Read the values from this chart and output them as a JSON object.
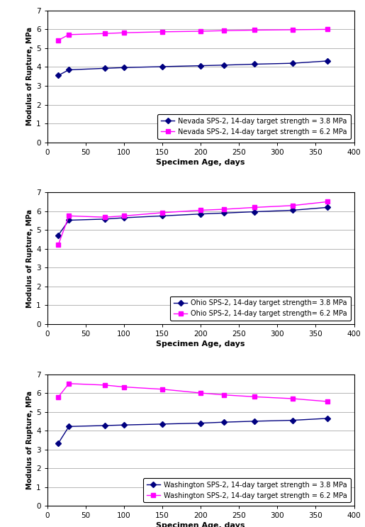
{
  "nevada": {
    "x_38": [
      14,
      28,
      75,
      100,
      150,
      200,
      230,
      270,
      320,
      365
    ],
    "y_38": [
      3.55,
      3.85,
      3.93,
      3.97,
      4.02,
      4.07,
      4.1,
      4.15,
      4.2,
      4.32
    ],
    "x_62": [
      14,
      28,
      75,
      100,
      150,
      200,
      230,
      270,
      320,
      365
    ],
    "y_62": [
      5.42,
      5.72,
      5.78,
      5.82,
      5.87,
      5.9,
      5.93,
      5.96,
      5.98,
      6.0
    ],
    "label_38": "Nevada SPS-2, 14-day target strength = 3.8 MPa",
    "label_62": "Nevada SPS-2, 14-day target strength = 6.2 MPa"
  },
  "ohio": {
    "x_38": [
      14,
      28,
      75,
      100,
      150,
      200,
      230,
      270,
      320,
      365
    ],
    "y_38": [
      4.72,
      5.52,
      5.58,
      5.65,
      5.75,
      5.85,
      5.9,
      5.97,
      6.05,
      6.2
    ],
    "x_62": [
      14,
      28,
      75,
      100,
      150,
      200,
      230,
      270,
      320,
      365
    ],
    "y_62": [
      4.2,
      5.75,
      5.68,
      5.75,
      5.92,
      6.05,
      6.1,
      6.2,
      6.3,
      6.5
    ],
    "label_38": "Ohio SPS-2, 14-day target strength= 3.8 MPa",
    "label_62": "Ohio SPS-2, 14-day target strength= 6.2 MPa"
  },
  "washington": {
    "x_38": [
      14,
      28,
      75,
      100,
      150,
      200,
      230,
      270,
      320,
      365
    ],
    "y_38": [
      3.32,
      4.22,
      4.27,
      4.3,
      4.35,
      4.4,
      4.45,
      4.5,
      4.55,
      4.65
    ],
    "x_62": [
      14,
      28,
      75,
      100,
      150,
      200,
      230,
      270,
      320,
      365
    ],
    "y_62": [
      5.78,
      6.5,
      6.42,
      6.32,
      6.2,
      6.0,
      5.9,
      5.8,
      5.7,
      5.55
    ],
    "label_38": "Washington SPS-2, 14-day target strength = 3.8 MPa",
    "label_62": "Washington SPS-2, 14-day target strength = 6.2 MPa"
  },
  "color_38": "#000080",
  "color_62": "#FF00FF",
  "ylabel": "Modulus of Rupture, MPa",
  "xlabel": "Specimen Age, days",
  "ylim": [
    0,
    7
  ],
  "xlim": [
    0,
    400
  ],
  "yticks": [
    0,
    1,
    2,
    3,
    4,
    5,
    6,
    7
  ],
  "xticks": [
    0,
    50,
    100,
    150,
    200,
    250,
    300,
    350,
    400
  ]
}
